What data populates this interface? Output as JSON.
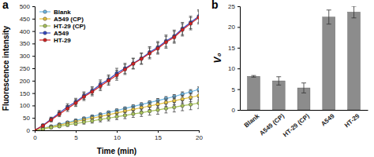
{
  "chart_data": [
    {
      "type": "line",
      "panel": "a",
      "xlabel": "Time (min)",
      "ylabel": "Fluorescence intensity",
      "x": [
        0,
        1,
        2,
        3,
        4,
        5,
        6,
        7,
        8,
        9,
        10,
        11,
        12,
        13,
        14,
        15,
        16,
        17,
        18,
        19,
        20
      ],
      "xlim": [
        0,
        20
      ],
      "xticks": [
        0,
        5,
        10,
        15,
        20
      ],
      "ylim": [
        0,
        500
      ],
      "yticks": [
        0,
        50,
        100,
        150,
        200,
        250,
        300,
        350,
        400,
        450,
        500
      ],
      "legend": "upper left",
      "marker": "circle",
      "series": [
        {
          "name": "Blank",
          "color": "#6db8e6",
          "values": [
            0,
            8,
            16,
            24,
            32,
            40,
            48,
            56,
            64,
            72,
            80,
            88,
            96,
            104,
            112,
            120,
            128,
            136,
            146,
            155,
            165
          ],
          "errors": [
            0,
            2,
            3,
            3,
            4,
            4,
            5,
            5,
            5,
            6,
            6,
            6,
            7,
            7,
            7,
            8,
            8,
            8,
            9,
            9,
            10
          ]
        },
        {
          "name": "A549 (CP)",
          "color": "#e6c23c",
          "values": [
            0,
            7,
            14,
            21,
            28,
            35,
            42,
            49,
            56,
            63,
            70,
            77,
            84,
            91,
            98,
            105,
            112,
            119,
            126,
            133,
            140
          ],
          "errors": [
            0,
            3,
            4,
            5,
            6,
            7,
            8,
            9,
            10,
            10,
            11,
            12,
            12,
            13,
            14,
            14,
            15,
            16,
            16,
            17,
            18
          ]
        },
        {
          "name": "HT-29 (CP)",
          "color": "#a9c45a",
          "values": [
            0,
            5,
            11,
            16,
            22,
            27,
            33,
            38,
            44,
            49,
            55,
            60,
            66,
            71,
            77,
            82,
            88,
            93,
            99,
            104,
            110
          ],
          "errors": [
            0,
            3,
            4,
            5,
            6,
            7,
            8,
            9,
            10,
            11,
            12,
            13,
            14,
            15,
            16,
            17,
            18,
            19,
            20,
            21,
            22
          ]
        },
        {
          "name": "A549",
          "color": "#3448c4",
          "values": [
            0,
            20,
            45,
            70,
            95,
            115,
            140,
            160,
            185,
            205,
            230,
            250,
            270,
            290,
            315,
            335,
            360,
            380,
            410,
            435,
            460
          ],
          "errors": [
            0,
            5,
            8,
            10,
            12,
            14,
            15,
            16,
            18,
            18,
            20,
            20,
            21,
            22,
            22,
            23,
            24,
            24,
            25,
            25,
            26
          ]
        },
        {
          "name": "HT-29",
          "color": "#d42020",
          "values": [
            0,
            18,
            42,
            65,
            88,
            110,
            135,
            155,
            178,
            200,
            222,
            245,
            268,
            288,
            310,
            330,
            355,
            375,
            405,
            430,
            455
          ],
          "errors": [
            0,
            5,
            8,
            10,
            12,
            14,
            15,
            16,
            18,
            18,
            20,
            20,
            21,
            22,
            22,
            23,
            24,
            24,
            25,
            25,
            26
          ]
        }
      ]
    },
    {
      "type": "bar",
      "panel": "b",
      "ylabel": "V₀",
      "categories": [
        "Blank",
        "A549 (CP)",
        "HT-29 (CP)",
        "A549",
        "HT-29"
      ],
      "values": [
        8.1,
        7.0,
        5.3,
        22.4,
        23.6
      ],
      "errors": [
        0.2,
        1.0,
        1.2,
        1.7,
        1.4
      ],
      "color": "#8c8c8c",
      "ylim": [
        0,
        25
      ],
      "yticks": [
        0,
        5,
        10,
        15,
        20,
        25
      ]
    }
  ]
}
